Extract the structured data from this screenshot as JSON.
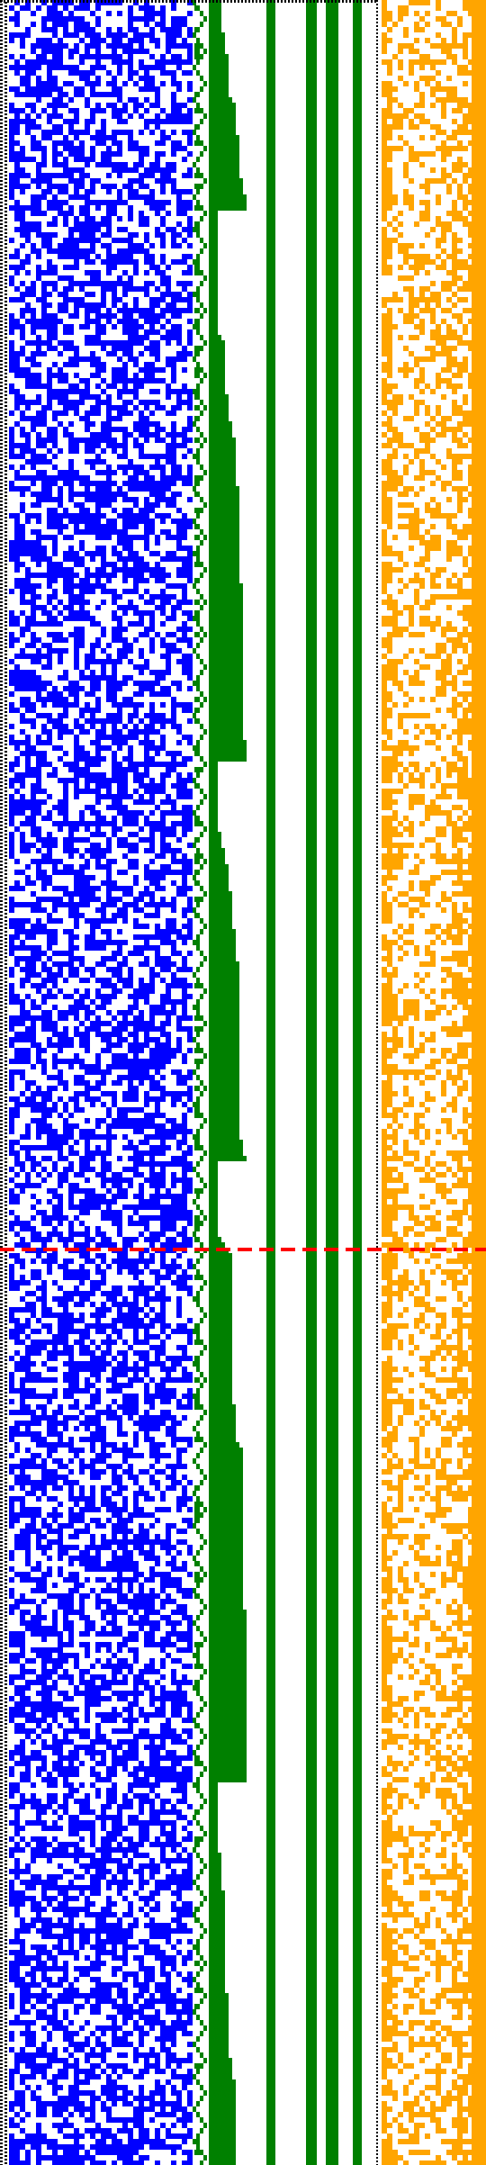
{
  "colors": {
    "background": "#ffffff",
    "blue": "#0000ff",
    "green": "#008000",
    "orange": "#ffa500",
    "red": "#ff0000",
    "black": "#000000"
  },
  "regions": {
    "blue_block": {
      "name": "blue-noise-region",
      "color_key": "blue"
    },
    "green_stairs": {
      "name": "green-staircase-region",
      "color_key": "green"
    },
    "green_bars": {
      "name": "green-vertical-bars",
      "color_key": "green"
    },
    "orange_block": {
      "name": "orange-noise-region",
      "color_key": "orange"
    },
    "dotted_borders": {
      "name": "dotted-border-lines",
      "color_key": "black"
    },
    "marker": {
      "name": "red-dashed-marker",
      "color_key": "red"
    }
  }
}
